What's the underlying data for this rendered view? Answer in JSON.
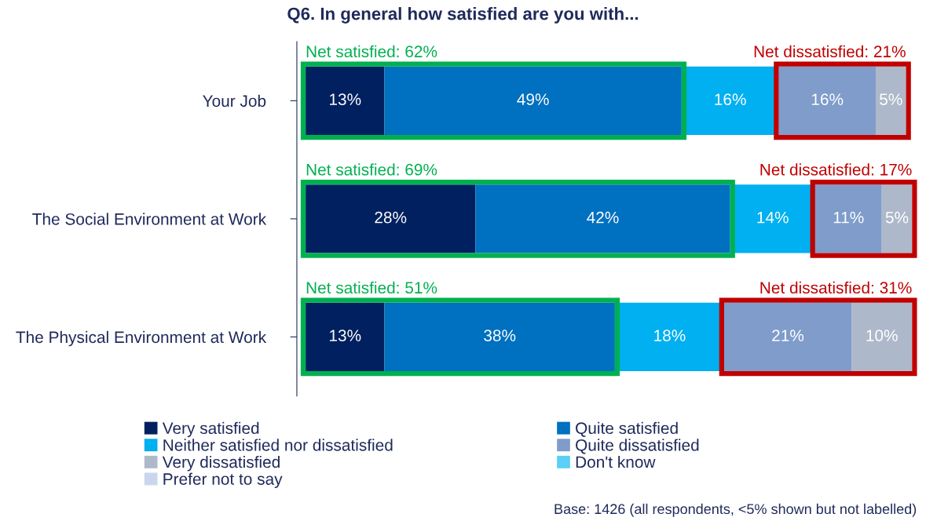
{
  "chart_data": {
    "type": "bar",
    "orientation": "horizontal",
    "stacked": true,
    "title": "Q6. In general how satisfied are you with...",
    "categories": [
      "Your Job",
      "The Social Environment at Work",
      "The Physical Environment at Work"
    ],
    "series": [
      {
        "name": "Very satisfied",
        "color": "#002060",
        "values": [
          13,
          28,
          13
        ],
        "value_labels": [
          "13%",
          "28%",
          "13%"
        ]
      },
      {
        "name": "Quite satisfied",
        "color": "#0070c0",
        "values": [
          49,
          42,
          38
        ],
        "value_labels": [
          "49%",
          "42%",
          "38%"
        ]
      },
      {
        "name": "Neither satisfied nor dissatisfied",
        "color": "#00b0f0",
        "values": [
          16,
          14,
          18
        ],
        "value_labels": [
          "16%",
          "14%",
          "18%"
        ]
      },
      {
        "name": "Quite dissatisfied",
        "color": "#7f9ccb",
        "values": [
          16,
          11,
          21
        ],
        "value_labels": [
          "16%",
          "11%",
          "21%"
        ]
      },
      {
        "name": "Very dissatisfied",
        "color": "#adb9ca",
        "values": [
          5,
          5,
          10
        ],
        "value_labels": [
          "5%",
          "5%",
          "10%"
        ]
      },
      {
        "name": "Don't know",
        "color": "#5bcff5",
        "values": [
          0,
          0,
          0
        ],
        "value_labels": [
          null,
          null,
          null
        ]
      },
      {
        "name": "Prefer not to say",
        "color": "#c9d6ee",
        "values": [
          0,
          0,
          0
        ],
        "value_labels": [
          null,
          null,
          null
        ]
      }
    ],
    "legend": "bottom",
    "annotations": [
      {
        "text": "Net satisfied: 62%",
        "x": 0,
        "y": "Your Job"
      },
      {
        "text": "Net dissatisfied: 21%",
        "x": 99,
        "y": "Your Job"
      },
      {
        "text": "Net satisfied: 69%",
        "x": 0,
        "y": "The Social Environment at Work"
      },
      {
        "text": "Net dissatisfied: 17%",
        "x": 100,
        "y": "The Social Environment at Work"
      },
      {
        "text": "Net satisfied: 51%",
        "x": 0,
        "y": "The Physical Environment at Work"
      },
      {
        "text": "Net dissatisfied: 31%",
        "x": 100,
        "y": "The Physical Environment at Work"
      },
      "Base: 1426 (all respondents, <5% shown but not labelled)"
    ]
  }
}
